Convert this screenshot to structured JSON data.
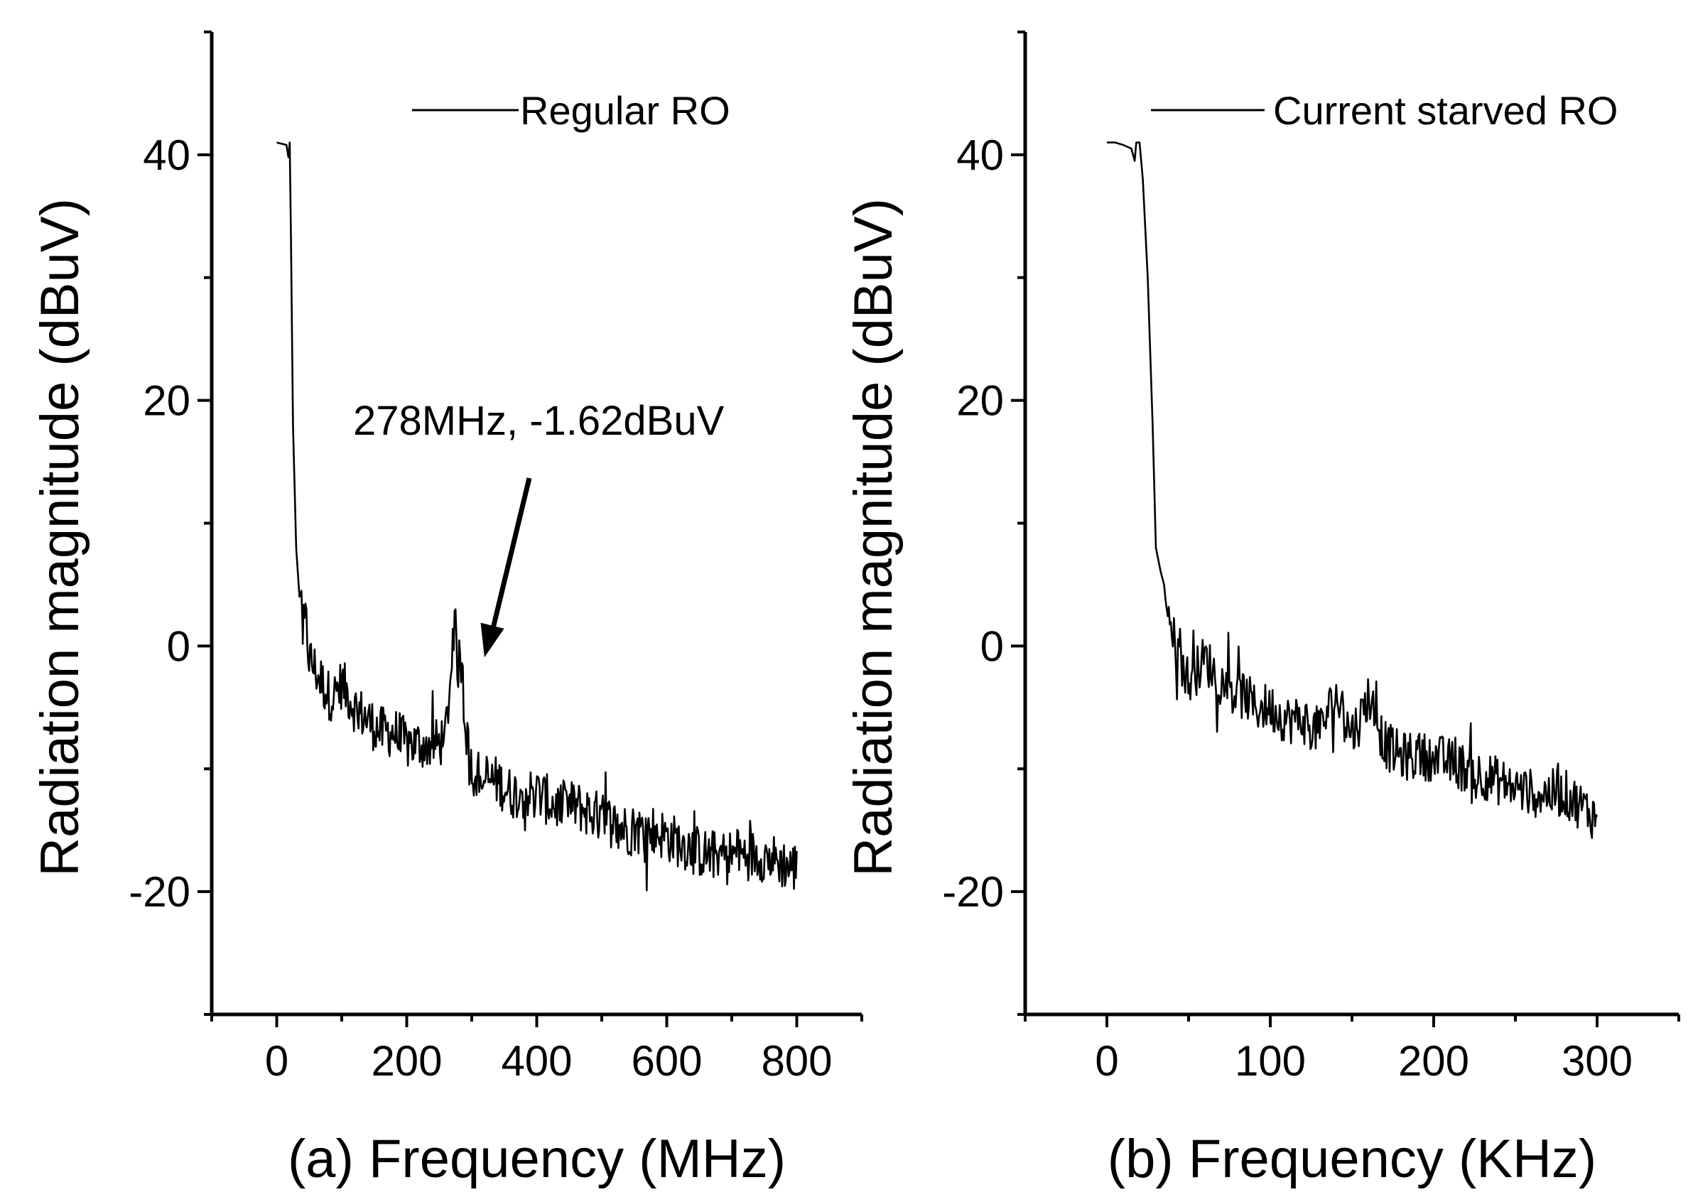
{
  "chart_data": [
    {
      "type": "line",
      "panel": "a",
      "xlabel": "(a) Frequency (MHz)",
      "ylabel": "Radiation magnitude (dBuV)",
      "xlim": [
        -100,
        900
      ],
      "ylim": [
        -30,
        50
      ],
      "xticks": [
        0,
        200,
        400,
        600,
        800
      ],
      "xtick_labels": [
        "0",
        "200",
        "400",
        "600",
        "800"
      ],
      "yticks": [
        -20,
        0,
        20,
        40
      ],
      "ytick_labels": [
        "-20",
        "0",
        "20",
        "40"
      ],
      "legend": "Regular RO",
      "legend_position": "top-right",
      "annotation": {
        "text": "278MHz, -1.62dBuV",
        "x": 278,
        "y": -1.62
      },
      "series": [
        {
          "name": "Regular RO",
          "x": [
            0,
            15,
            18,
            20,
            22,
            25,
            30,
            35,
            38,
            40,
            45,
            50,
            60,
            70,
            80,
            90,
            100,
            120,
            140,
            160,
            180,
            200,
            220,
            240,
            250,
            260,
            265,
            270,
            275,
            278,
            282,
            286,
            290,
            295,
            300,
            320,
            340,
            360,
            380,
            400,
            430,
            460,
            500,
            540,
            580,
            620,
            660,
            700,
            740,
            770,
            790,
            800
          ],
          "values": [
            41,
            40.8,
            39.8,
            41,
            33,
            18,
            8,
            4,
            4.5,
            1,
            2,
            -1,
            -2,
            -3,
            -4,
            -4,
            -3,
            -5,
            -6,
            -7,
            -7,
            -8,
            -8,
            -8,
            -8,
            -7,
            -4,
            -1,
            1,
            -1.62,
            -1.2,
            -2,
            -6,
            -9,
            -10,
            -11,
            -11,
            -12,
            -12,
            -12,
            -13,
            -13,
            -14,
            -15,
            -15,
            -16,
            -17,
            -17,
            -17,
            -17.5,
            -18,
            -18
          ]
        }
      ]
    },
    {
      "type": "line",
      "panel": "b",
      "xlabel": "(b) Frequency (KHz)",
      "ylabel": "Radiation magnitude (dBuV)",
      "xlim": [
        -50,
        350
      ],
      "ylim": [
        -30,
        50
      ],
      "xticks": [
        0,
        100,
        200,
        300
      ],
      "xtick_labels": [
        "0",
        "100",
        "200",
        "300"
      ],
      "yticks": [
        -20,
        0,
        20,
        40
      ],
      "ytick_labels": [
        "-20",
        "0",
        "20",
        "40"
      ],
      "legend": "Current starved RO",
      "legend_position": "top-right",
      "series": [
        {
          "name": "Current starved RO",
          "x": [
            0,
            5,
            10,
            15,
            17,
            18,
            20,
            22,
            25,
            28,
            30,
            33,
            35,
            38,
            40,
            42,
            45,
            48,
            50,
            55,
            60,
            65,
            70,
            75,
            80,
            85,
            90,
            95,
            100,
            110,
            120,
            130,
            140,
            145,
            150,
            155,
            160,
            170,
            180,
            200,
            220,
            240,
            260,
            280,
            300
          ],
          "values": [
            41,
            41,
            40.8,
            40.5,
            39.5,
            41,
            41,
            38,
            30,
            18,
            8,
            6,
            5,
            3,
            1,
            0,
            -1,
            -2,
            -3,
            -2,
            -1,
            -2,
            -3,
            -3,
            -4,
            -4,
            -5,
            -5,
            -5,
            -6,
            -6,
            -7,
            -4,
            -6,
            -7,
            -6,
            -4,
            -8,
            -9,
            -9,
            -10,
            -11,
            -12,
            -12,
            -14
          ]
        }
      ]
    }
  ]
}
